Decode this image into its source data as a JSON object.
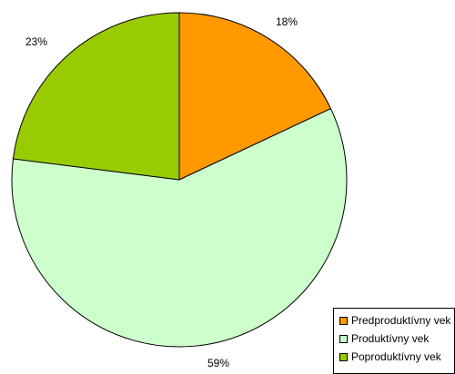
{
  "chart_data": {
    "type": "pie",
    "title": "",
    "slices": [
      {
        "label": "Predproduktívny vek",
        "value": 18,
        "display": "18%",
        "color": "#FF9900"
      },
      {
        "label": "Produktívny vek",
        "value": 59,
        "display": "59%",
        "color": "#CCFFCC"
      },
      {
        "label": "Poproduktívny vek",
        "value": 23,
        "display": "23%",
        "color": "#99CC00"
      }
    ],
    "start_angle": "12 o'clock",
    "direction": "clockwise",
    "legend": {
      "position": "bottom-right",
      "show": true
    },
    "data_labels": "outside"
  }
}
